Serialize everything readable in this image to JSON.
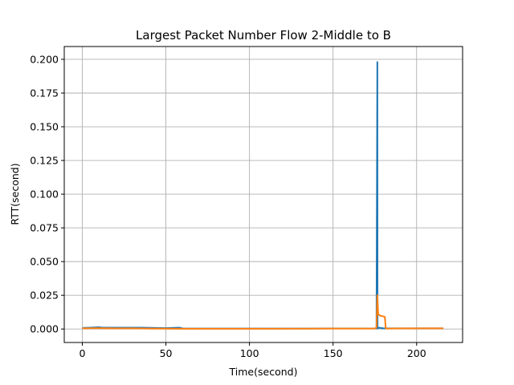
{
  "chart_data": {
    "type": "line",
    "title": "Largest Packet Number Flow 2-Middle to B",
    "xlabel": "Time(second)",
    "ylabel": "RTT(second)",
    "xlim": [
      -10.8,
      227.5
    ],
    "ylim": [
      -0.01,
      0.2095
    ],
    "xticks": [
      0,
      50,
      100,
      150,
      200
    ],
    "xtick_labels": [
      "0",
      "50",
      "100",
      "150",
      "200"
    ],
    "yticks": [
      0.0,
      0.025,
      0.05,
      0.075,
      0.1,
      0.125,
      0.15,
      0.175,
      0.2
    ],
    "ytick_labels": [
      "0.000",
      "0.025",
      "0.050",
      "0.075",
      "0.100",
      "0.125",
      "0.150",
      "0.175",
      "0.200"
    ],
    "grid": true,
    "series": [
      {
        "color": "#1f77b4",
        "x": [
          0,
          5,
          10,
          12,
          20,
          35,
          50,
          58,
          60,
          100,
          150,
          176,
          176.5,
          176.6,
          177,
          177.3,
          180,
          200,
          216
        ],
        "y": [
          0.0008,
          0.001,
          0.0013,
          0.001,
          0.001,
          0.001,
          0.0006,
          0.001,
          0.0004,
          0.0003,
          0.0004,
          0.0004,
          0.198,
          0.0005,
          0.0005,
          0.001,
          0.0005,
          0.0005,
          0.0005
        ]
      },
      {
        "color": "#ff7f0e",
        "x": [
          0,
          10,
          20,
          30,
          40,
          60,
          100,
          150,
          175,
          176,
          176.5,
          177,
          178,
          181,
          181.5,
          182,
          200,
          216
        ],
        "y": [
          0.0005,
          0.0006,
          0.0005,
          0.0005,
          0.0003,
          0.0002,
          0.0002,
          0.0003,
          0.0003,
          0.001,
          0.025,
          0.011,
          0.01,
          0.009,
          0.0005,
          0.0003,
          0.0005,
          0.0005
        ]
      }
    ]
  }
}
